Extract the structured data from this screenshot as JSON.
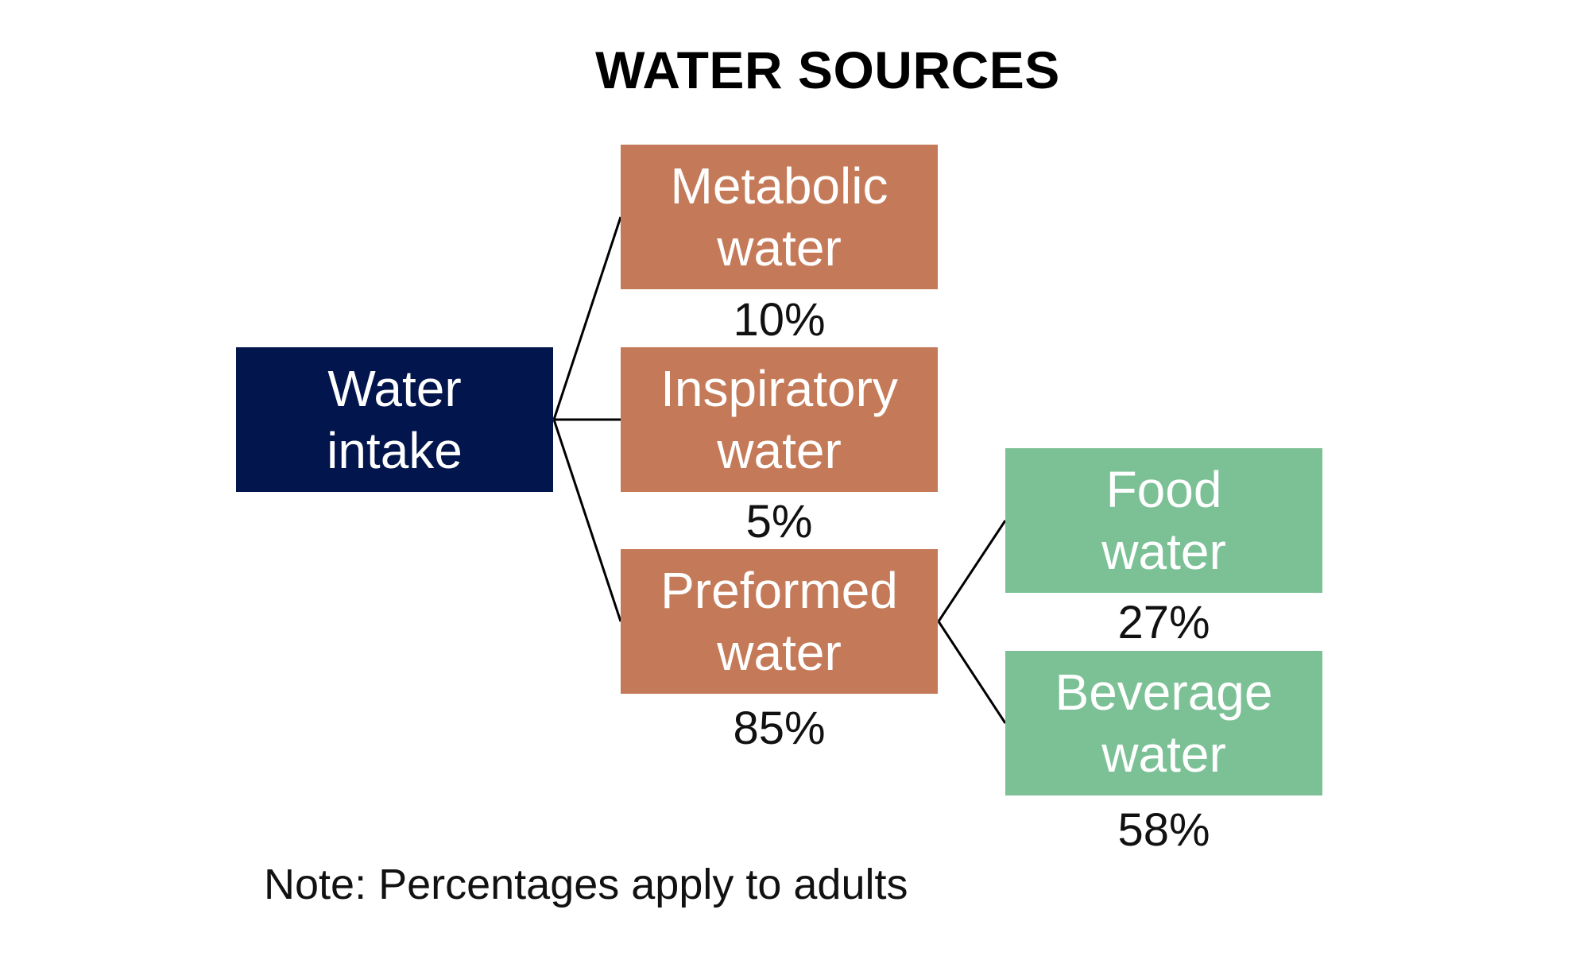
{
  "title": "WATER SOURCES",
  "nodes": {
    "intake": {
      "line1": "Water",
      "line2": "intake"
    },
    "metabolic": {
      "line1": "Metabolic",
      "line2": "water",
      "percent": "10%"
    },
    "inspiratory": {
      "line1": "Inspiratory",
      "line2": "water",
      "percent": "5%"
    },
    "preformed": {
      "line1": "Preformed",
      "line2": "water",
      "percent": "85%"
    },
    "food": {
      "line1": "Food",
      "line2": "water",
      "percent": "27%"
    },
    "beverage": {
      "line1": "Beverage",
      "line2": "water",
      "percent": "58%"
    }
  },
  "note": "Note: Percentages apply to adults",
  "colors": {
    "intake": "#02154d",
    "intake_sources": "#c47a58",
    "preformed_sources": "#7cc196"
  }
}
